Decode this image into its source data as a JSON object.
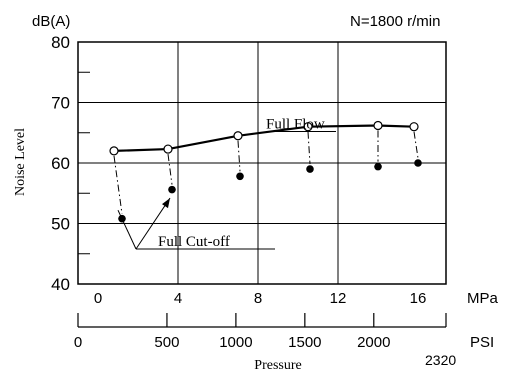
{
  "chart_data": {
    "type": "line",
    "condition_label": "N=1800 r/min",
    "ylabel": "Noise Level",
    "yunit": "dB(A)",
    "ylim": [
      40,
      80
    ],
    "yticks": [
      "40",
      "50",
      "60",
      "70",
      "80"
    ],
    "xlabel": "Pressure",
    "x_mpa": {
      "unit": "MPa",
      "range": [
        0,
        16
      ],
      "ticks": [
        "0",
        "4",
        "8",
        "12",
        "16"
      ]
    },
    "x_psi": {
      "unit": "PSI",
      "ticks": [
        "0",
        "500",
        "1000",
        "1500",
        "2000"
      ],
      "max_label": "2320"
    },
    "series": [
      {
        "name": "Full Flow",
        "marker": "open-circle",
        "x": [
          0.8,
          3.5,
          7.0,
          10.5,
          14.0,
          15.8
        ],
        "y": [
          62.0,
          62.3,
          64.5,
          66.0,
          66.2,
          66.0
        ]
      },
      {
        "name": "Full Cut-off",
        "marker": "filled-circle",
        "x": [
          1.2,
          3.7,
          7.1,
          10.6,
          14.0,
          16.0
        ],
        "y": [
          50.8,
          55.6,
          57.8,
          59.0,
          59.4,
          60.0
        ]
      }
    ]
  }
}
